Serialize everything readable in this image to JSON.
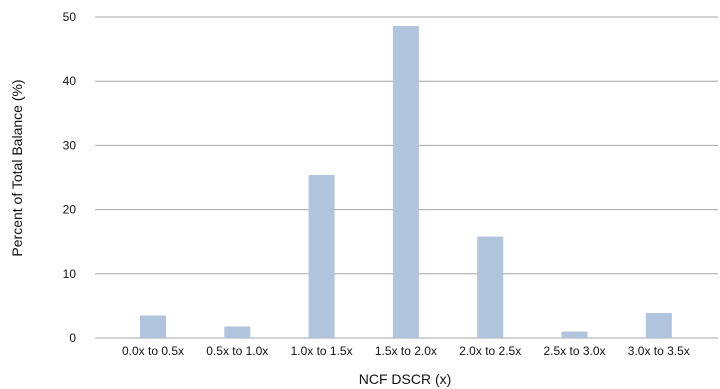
{
  "chart_data": {
    "type": "bar",
    "categories": [
      "0.0x to 0.5x",
      "0.5x to 1.0x",
      "1.0x to 1.5x",
      "1.5x to 2.0x",
      "2.0x to 2.5x",
      "2.5x to 3.0x",
      "3.0x to 3.5x"
    ],
    "values": [
      3.5,
      1.8,
      25.4,
      48.6,
      15.8,
      1.0,
      3.9
    ],
    "xlabel": "NCF DSCR (x)",
    "ylabel": "Percent of Total Balance (%)",
    "ylim": [
      0,
      50
    ],
    "yticks": [
      0,
      10,
      20,
      30,
      40,
      50
    ],
    "grid": true,
    "colors": {
      "bar": "#b0c4de",
      "grid": "#a6a6a6"
    }
  }
}
